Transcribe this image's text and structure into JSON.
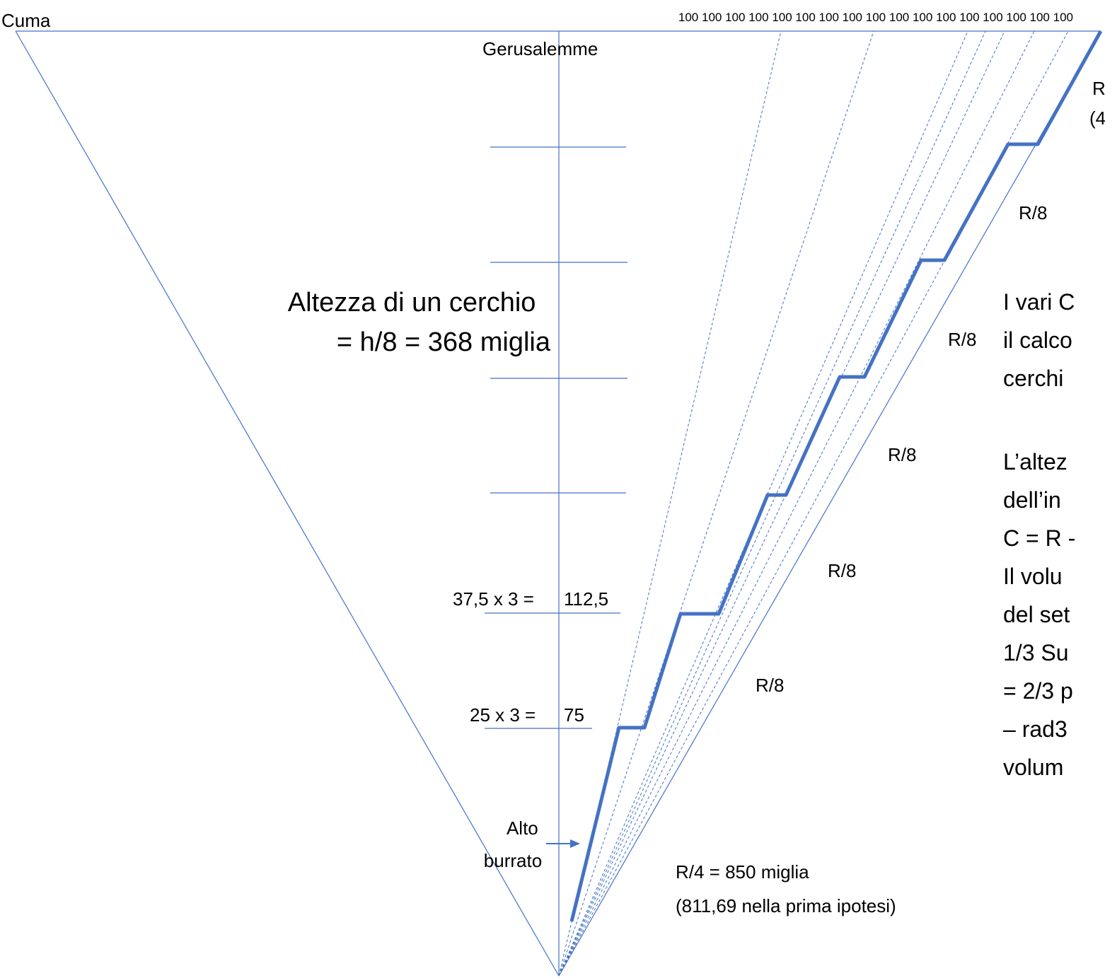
{
  "colors": {
    "line": "#4472c4",
    "text": "#000000",
    "background": "#ffffff"
  },
  "labels": {
    "cuma": "Cuma",
    "gerusalemme": "Gerusalemme",
    "top_scale": [
      "100",
      "100",
      "100",
      "100",
      "100",
      "100",
      "100",
      "100",
      "100",
      "100",
      "100",
      "100",
      "100",
      "100",
      "100",
      "100",
      "100"
    ],
    "circle_height": [
      "Altezza di un cerchio",
      "= h/8 = 368 miglia"
    ],
    "step_112": "37,5 x 3 =",
    "val_112": "112,5",
    "step_75": "25 x 3 =",
    "val_75": "75",
    "alto_burrato": [
      "Alto",
      "burrato"
    ],
    "r4": [
      "R/4 = 850 miglia",
      "(811,69 nella prima ipotesi)"
    ],
    "r8": [
      "R/8",
      "R/8",
      "R/8",
      "R/8",
      "R/8"
    ],
    "right_top": [
      "R",
      "(4"
    ],
    "right_text": [
      "I vari C",
      "il calco",
      "cerchi",
      "L’altez",
      "dell’in",
      "C = R -",
      "Il volu",
      "del set",
      " 1/3 Su",
      "= 2/3 p",
      "– rad3",
      "volum"
    ]
  }
}
